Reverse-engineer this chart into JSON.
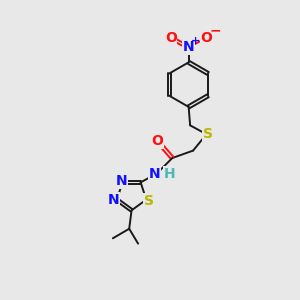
{
  "bg_color": "#e8e8e8",
  "bond_color": "#1a1a1a",
  "N_color": "#1010ff",
  "O_color": "#ff1010",
  "S_color": "#b8b800",
  "H_color": "#4db8b8",
  "label_fontsize": 10,
  "figsize": [
    3.0,
    3.0
  ],
  "dpi": 100,
  "xlim": [
    0,
    10
  ],
  "ylim": [
    0,
    10
  ]
}
